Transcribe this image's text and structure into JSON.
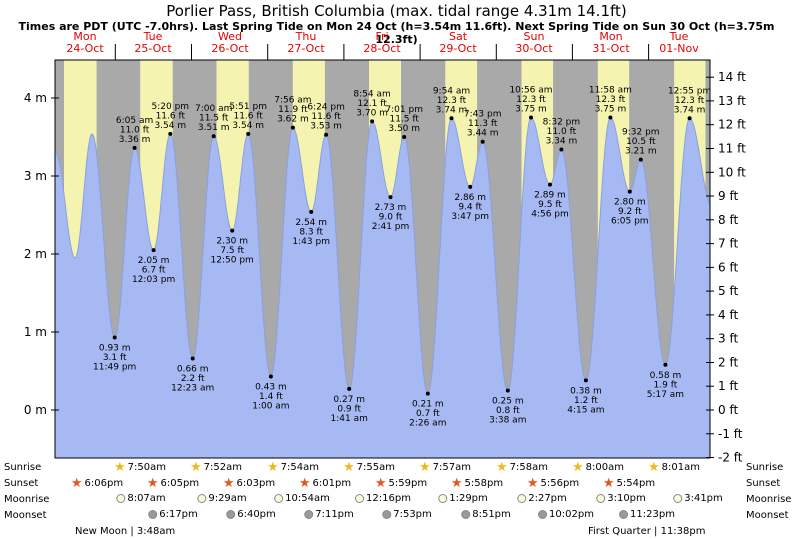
{
  "title": "Porlier Pass, British Columbia (max. tidal range 4.31m 14.1ft)",
  "subtitle": "Times are PDT (UTC -7.0hrs). Last Spring Tide on Mon 24 Oct (h=3.54m 11.6ft). Next Spring Tide on Sun 30 Oct (h=3.75m 12.3ft)",
  "colors": {
    "day_band": "#f4f4b0",
    "night_band": "#a9a9a9",
    "tide_fill": "#a7b9f3",
    "tide_edge": "#8aa0e0",
    "day_label": "#e60000",
    "sunrise_star": "#edb91f",
    "sunset_star": "#e8541d",
    "moonrise_moon": "#fbfbdc",
    "moonset_moon": "#9a9a9a",
    "text": "#000000"
  },
  "days": [
    {
      "name": "Mon",
      "date": "24-Oct"
    },
    {
      "name": "Tue",
      "date": "25-Oct"
    },
    {
      "name": "Wed",
      "date": "26-Oct"
    },
    {
      "name": "Thu",
      "date": "27-Oct"
    },
    {
      "name": "Fri",
      "date": "28-Oct"
    },
    {
      "name": "Sat",
      "date": "29-Oct"
    },
    {
      "name": "Sun",
      "date": "30-Oct"
    },
    {
      "name": "Mon",
      "date": "31-Oct"
    },
    {
      "name": "Tue",
      "date": "01-Nov"
    }
  ],
  "chart_data": {
    "type": "area",
    "title": "Porlier Pass, British Columbia tide heights",
    "left_unit": "m",
    "left_ticks": [
      0,
      1,
      2,
      3,
      4
    ],
    "right_unit": "ft",
    "right_ticks": [
      -2,
      -1,
      0,
      1,
      2,
      3,
      4,
      5,
      6,
      7,
      8,
      9,
      10,
      11,
      12,
      13,
      14
    ],
    "ylim_m": [
      -0.64,
      4.49
    ],
    "events": [
      {
        "d": 0,
        "time": "5:10 am",
        "h": 3.3,
        "kind": "high",
        "anchor": true
      },
      {
        "d": 0,
        "time": "11:20 am",
        "h": 1.95,
        "kind": "low",
        "anchor": true
      },
      {
        "d": 0,
        "time": "4:40 pm",
        "h": 3.54,
        "kind": "high",
        "anchor": true
      },
      {
        "d": 0,
        "time": "11:49 pm",
        "h": 0.93,
        "kind": "low",
        "lines": [
          "0.93 m",
          "3.1 ft",
          "11:49 pm"
        ]
      },
      {
        "d": 1,
        "time": "6:05 am",
        "h": 3.36,
        "kind": "high",
        "lines": [
          "6:05 am",
          "11.0 ft",
          "3.36 m"
        ]
      },
      {
        "d": 1,
        "time": "12:03 pm",
        "h": 2.05,
        "kind": "low",
        "lines": [
          "2.05 m",
          "6.7 ft",
          "12:03 pm"
        ]
      },
      {
        "d": 1,
        "time": "5:20 pm",
        "h": 3.54,
        "kind": "high",
        "lines": [
          "5:20 pm",
          "11.6 ft",
          "3.54 m"
        ]
      },
      {
        "d": 2,
        "time": "12:23 am",
        "h": 0.66,
        "kind": "low",
        "lines": [
          "0.66 m",
          "2.2 ft",
          "12:23 am"
        ]
      },
      {
        "d": 2,
        "time": "7:00 am",
        "h": 3.51,
        "kind": "high",
        "lines": [
          "7:00 am",
          "11.5 ft",
          "3.51 m"
        ]
      },
      {
        "d": 2,
        "time": "12:50 pm",
        "h": 2.3,
        "kind": "low",
        "lines": [
          "2.30 m",
          "7.5 ft",
          "12:50 pm"
        ]
      },
      {
        "d": 2,
        "time": "5:51 pm",
        "h": 3.54,
        "kind": "high",
        "lines": [
          "5:51 pm",
          "11.6 ft",
          "3.54 m"
        ]
      },
      {
        "d": 3,
        "time": "1:00 am",
        "h": 0.43,
        "kind": "low",
        "lines": [
          "0.43 m",
          "1.4 ft",
          "1:00 am"
        ]
      },
      {
        "d": 3,
        "time": "7:56 am",
        "h": 3.62,
        "kind": "high",
        "lines": [
          "7:56 am",
          "11.9 ft",
          "3.62 m"
        ]
      },
      {
        "d": 3,
        "time": "1:43 pm",
        "h": 2.54,
        "kind": "low",
        "lines": [
          "2.54 m",
          "8.3 ft",
          "1:43 pm"
        ]
      },
      {
        "d": 3,
        "time": "6:24 pm",
        "h": 3.53,
        "kind": "high",
        "lines": [
          "6:24 pm",
          "11.6 ft",
          "3.53 m"
        ]
      },
      {
        "d": 4,
        "time": "1:41 am",
        "h": 0.27,
        "kind": "low",
        "lines": [
          "0.27 m",
          "0.9 ft",
          "1:41 am"
        ]
      },
      {
        "d": 4,
        "time": "8:54 am",
        "h": 3.7,
        "kind": "high",
        "lines": [
          "8:54 am",
          "12.1 ft",
          "3.70 m"
        ]
      },
      {
        "d": 4,
        "time": "2:41 pm",
        "h": 2.73,
        "kind": "low",
        "lines": [
          "2.73 m",
          "9.0 ft",
          "2:41 pm"
        ]
      },
      {
        "d": 4,
        "time": "7:01 pm",
        "h": 3.5,
        "kind": "high",
        "lines": [
          "7:01 pm",
          "11.5 ft",
          "3.50 m"
        ]
      },
      {
        "d": 5,
        "time": "2:26 am",
        "h": 0.21,
        "kind": "low",
        "lines": [
          "0.21 m",
          "0.7 ft",
          "2:26 am"
        ]
      },
      {
        "d": 5,
        "time": "9:54 am",
        "h": 3.74,
        "kind": "high",
        "lines": [
          "9:54 am",
          "12.3 ft",
          "3.74 m"
        ]
      },
      {
        "d": 5,
        "time": "3:47 pm",
        "h": 2.86,
        "kind": "low",
        "lines": [
          "2.86 m",
          "9.4 ft",
          "3:47 pm"
        ]
      },
      {
        "d": 5,
        "time": "7:43 pm",
        "h": 3.44,
        "kind": "high",
        "lines": [
          "7:43 pm",
          "11.3 ft",
          "3.44 m"
        ]
      },
      {
        "d": 6,
        "time": "3:38 am",
        "h": 0.25,
        "kind": "low",
        "lines": [
          "0.25 m",
          "0.8 ft",
          "3:38 am"
        ]
      },
      {
        "d": 6,
        "time": "10:56 am",
        "h": 3.75,
        "kind": "high",
        "lines": [
          "10:56 am",
          "12.3 ft",
          "3.75 m"
        ]
      },
      {
        "d": 6,
        "time": "4:56 pm",
        "h": 2.89,
        "kind": "low",
        "lines": [
          "2.89 m",
          "9.5 ft",
          "4:56 pm"
        ]
      },
      {
        "d": 6,
        "time": "8:32 pm",
        "h": 3.34,
        "kind": "high",
        "lines": [
          "8:32 pm",
          "11.0 ft",
          "3.34 m"
        ]
      },
      {
        "d": 7,
        "time": "4:15 am",
        "h": 0.38,
        "kind": "low",
        "lines": [
          "0.38 m",
          "1.2 ft",
          "4:15 am"
        ]
      },
      {
        "d": 7,
        "time": "11:58 am",
        "h": 3.75,
        "kind": "high",
        "lines": [
          "11:58 am",
          "12.3 ft",
          "3.75 m"
        ]
      },
      {
        "d": 7,
        "time": "6:05 pm",
        "h": 2.8,
        "kind": "low",
        "lines": [
          "2.80 m",
          "9.2 ft",
          "6:05 pm"
        ]
      },
      {
        "d": 7,
        "time": "9:32 pm",
        "h": 3.21,
        "kind": "high",
        "lines": [
          "9:32 pm",
          "10.5 ft",
          "3.21 m"
        ]
      },
      {
        "d": 8,
        "time": "5:17 am",
        "h": 0.58,
        "kind": "low",
        "lines": [
          "0.58 m",
          "1.9 ft",
          "5:17 am"
        ]
      },
      {
        "d": 8,
        "time": "12:55 pm",
        "h": 3.74,
        "kind": "high",
        "lines": [
          "12:55 pm",
          "12.3 ft",
          "3.74 m"
        ]
      },
      {
        "d": 8,
        "time": "8:00 pm",
        "h": 2.6,
        "kind": "low",
        "anchor": true
      }
    ]
  },
  "astro": {
    "sunrise": {
      "label": "Sunrise",
      "icon": "sunrise-star-icon",
      "entries": [
        {
          "day": 1,
          "time": "7:50am"
        },
        {
          "day": 2,
          "time": "7:52am"
        },
        {
          "day": 3,
          "time": "7:54am"
        },
        {
          "day": 4,
          "time": "7:55am"
        },
        {
          "day": 5,
          "time": "7:57am"
        },
        {
          "day": 6,
          "time": "7:58am"
        },
        {
          "day": 7,
          "time": "8:00am"
        },
        {
          "day": 8,
          "time": "8:01am"
        }
      ]
    },
    "sunset": {
      "label": "Sunset",
      "icon": "sunset-star-icon",
      "entries": [
        {
          "day": 0,
          "time": "6:06pm"
        },
        {
          "day": 1,
          "time": "6:05pm"
        },
        {
          "day": 2,
          "time": "6:03pm"
        },
        {
          "day": 3,
          "time": "6:01pm"
        },
        {
          "day": 4,
          "time": "5:59pm"
        },
        {
          "day": 5,
          "time": "5:58pm"
        },
        {
          "day": 6,
          "time": "5:56pm"
        },
        {
          "day": 7,
          "time": "5:54pm"
        }
      ]
    },
    "moonrise": {
      "label": "Moonrise",
      "icon": "moonrise-moon-icon",
      "entries": [
        {
          "day": 1,
          "time": "8:07am"
        },
        {
          "day": 2,
          "time": "9:29am"
        },
        {
          "day": 3,
          "time": "10:54am"
        },
        {
          "day": 4,
          "time": "12:16pm"
        },
        {
          "day": 5,
          "time": "1:29pm"
        },
        {
          "day": 6,
          "time": "2:27pm"
        },
        {
          "day": 7,
          "time": "3:10pm"
        },
        {
          "day": 8,
          "time": "3:41pm"
        }
      ]
    },
    "moonset": {
      "label": "Moonset",
      "icon": "moonset-moon-icon",
      "entries": [
        {
          "day": 1,
          "time": "6:17pm"
        },
        {
          "day": 2,
          "time": "6:40pm"
        },
        {
          "day": 3,
          "time": "7:11pm"
        },
        {
          "day": 4,
          "time": "7:53pm"
        },
        {
          "day": 5,
          "time": "8:51pm"
        },
        {
          "day": 6,
          "time": "10:02pm"
        },
        {
          "day": 7,
          "time": "11:23pm"
        }
      ]
    },
    "phases": [
      {
        "label": "New Moon",
        "time": "3:48am"
      },
      {
        "label": "First Quarter",
        "time": "11:38pm"
      }
    ]
  }
}
